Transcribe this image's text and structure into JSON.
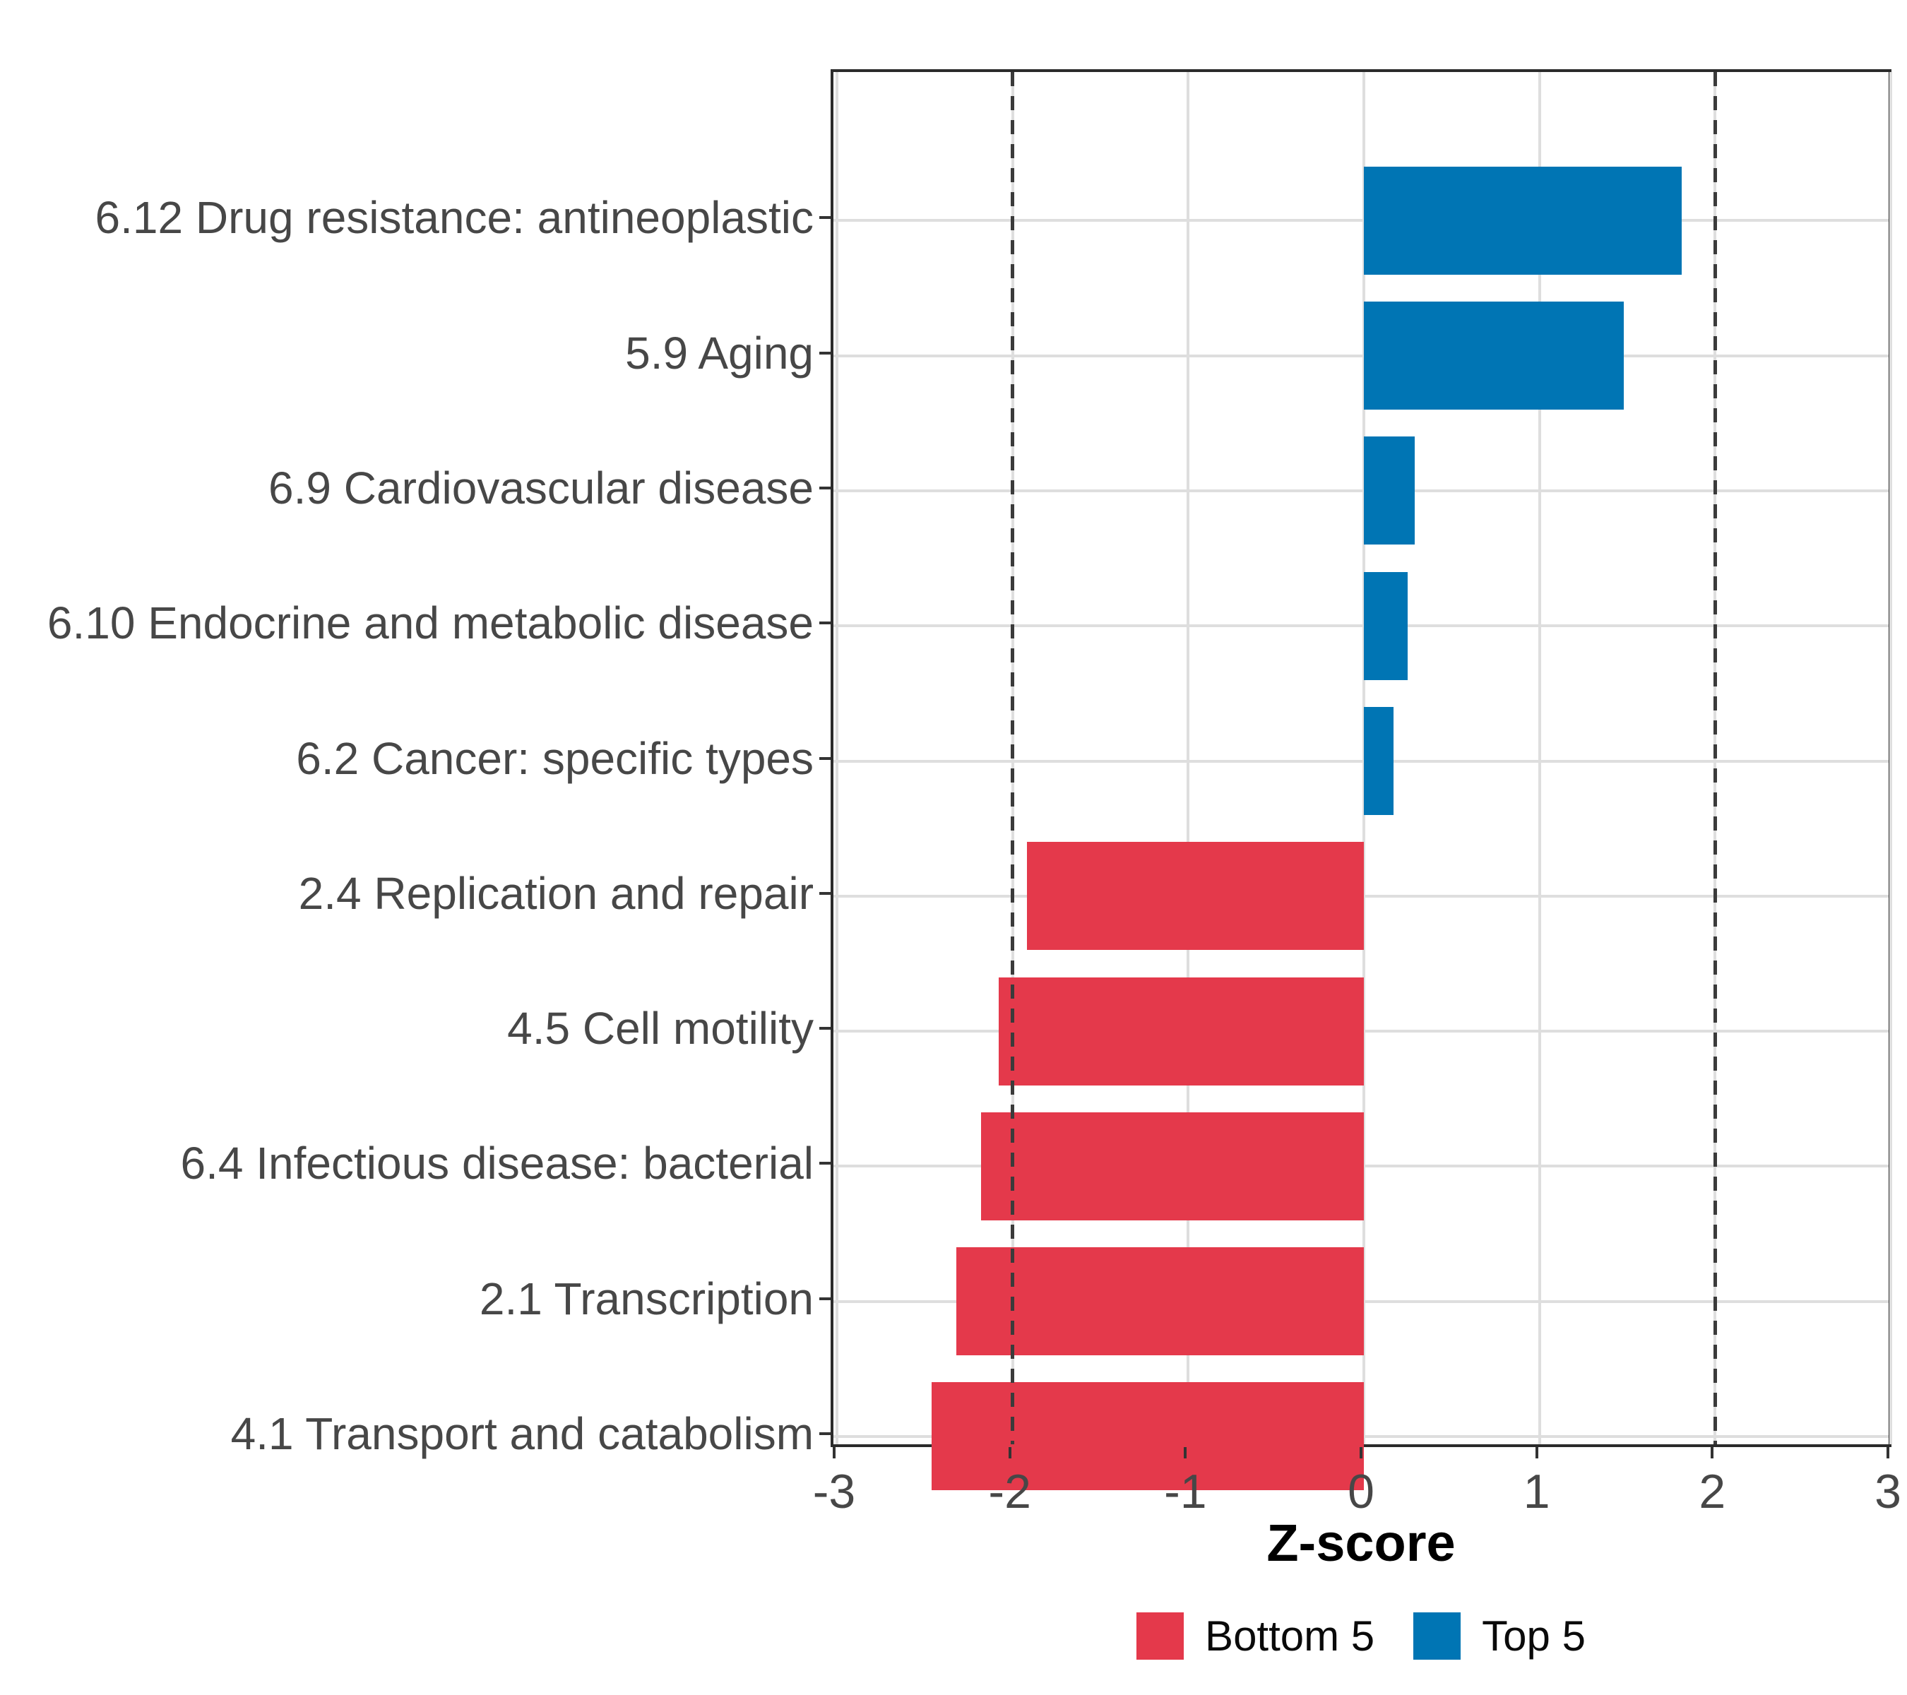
{
  "chart_data": {
    "type": "bar",
    "orientation": "horizontal",
    "title": "",
    "xlabel": "Z-score",
    "ylabel": "",
    "xlim": [
      -3,
      3
    ],
    "x_ticks": [
      "-3",
      "-2",
      "-1",
      "0",
      "1",
      "2",
      "3"
    ],
    "x_tick_values": [
      -3,
      -2,
      -1,
      0,
      1,
      2,
      3
    ],
    "grid": true,
    "reference_lines": {
      "style": "dashed",
      "values": [
        -2,
        2
      ]
    },
    "legend_position": "bottom",
    "categories": [
      "6.12 Drug resistance: antineoplastic",
      "5.9 Aging",
      "6.9 Cardiovascular disease",
      "6.10 Endocrine and metabolic disease",
      "6.2 Cancer: specific types",
      "2.4 Replication and repair",
      "4.5 Cell motility",
      "6.4 Infectious disease: bacterial",
      "2.1 Transcription",
      "4.1 Transport and catabolism"
    ],
    "values": [
      1.81,
      1.48,
      0.29,
      0.25,
      0.17,
      -1.92,
      -2.08,
      -2.18,
      -2.32,
      -2.46
    ],
    "groups": [
      "Top 5",
      "Top 5",
      "Top 5",
      "Top 5",
      "Top 5",
      "Bottom 5",
      "Bottom 5",
      "Bottom 5",
      "Bottom 5",
      "Bottom 5"
    ],
    "colors": {
      "Top 5": "#0075b4",
      "Bottom 5": "#e4394b",
      "grid": "#dedede",
      "panel_border": "#2b2b2b",
      "axis_text": "#474747",
      "reference_line": "#3b3b3b",
      "background": "#ffffff"
    },
    "legend": [
      {
        "label": "Bottom 5",
        "color": "#e4394b"
      },
      {
        "label": "Top 5",
        "color": "#0075b4"
      }
    ]
  }
}
